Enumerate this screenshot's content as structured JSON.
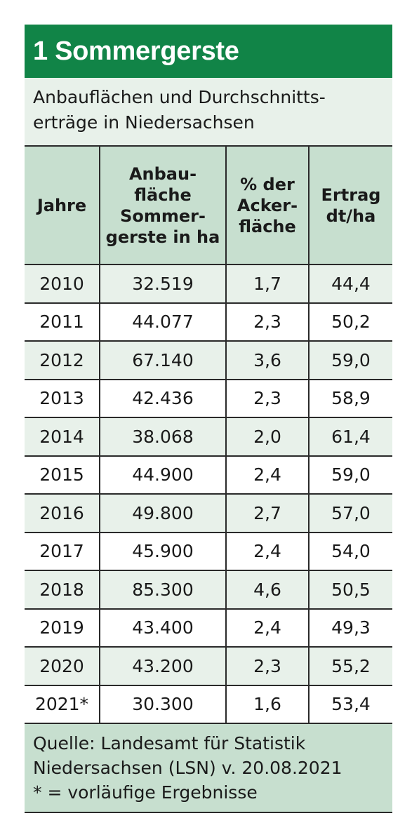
{
  "title": "1 Sommergerste",
  "subtitle": {
    "line1": "Anbauflächen und Durchschnitts-",
    "line2": "erträge in Niedersachsen"
  },
  "headers": {
    "col1": [
      "Jahre"
    ],
    "col2": [
      "Anbau-",
      "fläche",
      "Sommer-",
      "gerste in ha"
    ],
    "col3": [
      "% der",
      "Acker-",
      "fläche"
    ],
    "col4": [
      "Ertrag",
      "dt/ha"
    ]
  },
  "rows": [
    {
      "year": "2010",
      "area": "32.519",
      "pct": "1,7",
      "yield": "44,4"
    },
    {
      "year": "2011",
      "area": "44.077",
      "pct": "2,3",
      "yield": "50,2"
    },
    {
      "year": "2012",
      "area": "67.140",
      "pct": "3,6",
      "yield": "59,0"
    },
    {
      "year": "2013",
      "area": "42.436",
      "pct": "2,3",
      "yield": "58,9"
    },
    {
      "year": "2014",
      "area": "38.068",
      "pct": "2,0",
      "yield": "61,4"
    },
    {
      "year": "2015",
      "area": "44.900",
      "pct": "2,4",
      "yield": "59,0"
    },
    {
      "year": "2016",
      "area": "49.800",
      "pct": "2,7",
      "yield": "57,0"
    },
    {
      "year": "2017",
      "area": "45.900",
      "pct": "2,4",
      "yield": "54,0"
    },
    {
      "year": "2018",
      "area": "85.300",
      "pct": "4,6",
      "yield": "50,5"
    },
    {
      "year": "2019",
      "area": "43.400",
      "pct": "2,4",
      "yield": "49,3"
    },
    {
      "year": "2020",
      "area": "43.200",
      "pct": "2,3",
      "yield": "55,2"
    },
    {
      "year": "2021*",
      "area": "30.300",
      "pct": "1,6",
      "yield": "53,4"
    }
  ],
  "source": {
    "line1": "Quelle: Landesamt für Statistik",
    "line2": "Niedersachsen (LSN) v. 20.08.2021",
    "line3": "* = vorläufige Ergebnisse"
  },
  "colors": {
    "title_bg": "#118447",
    "header_bg": "#c7dfcf",
    "row_shade": "#e8f1ea"
  }
}
